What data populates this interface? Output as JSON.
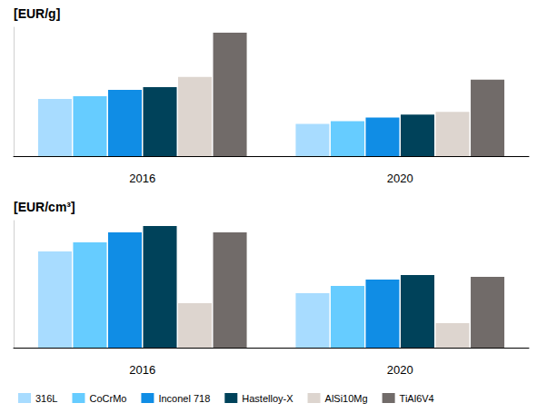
{
  "chart_data": [
    {
      "type": "bar",
      "ylabel": "[EUR/g]",
      "categories": [
        "2016",
        "2020"
      ],
      "series": [
        {
          "name": "316L",
          "color": "#a8dcff",
          "values": [
            62,
            35
          ]
        },
        {
          "name": "CoCrMo",
          "color": "#66ccff",
          "values": [
            65,
            38
          ]
        },
        {
          "name": "Inconel 718",
          "color": "#108de5",
          "values": [
            72,
            42
          ]
        },
        {
          "name": "Hastelloy-X",
          "color": "#00425a",
          "values": [
            75,
            45
          ]
        },
        {
          "name": "AlSi10Mg",
          "color": "#ddd5cf",
          "values": [
            86,
            48
          ]
        },
        {
          "name": "TiAl6V4",
          "color": "#716b69",
          "values": [
            134,
            83
          ]
        }
      ],
      "ylim": [
        0,
        140
      ],
      "grid": false,
      "tick_labels": "x"
    },
    {
      "type": "bar",
      "ylabel": "[EUR/cm³]",
      "categories": [
        "2016",
        "2020"
      ],
      "series": [
        {
          "name": "316L",
          "color": "#a8dcff",
          "values": [
            106,
            60
          ]
        },
        {
          "name": "CoCrMo",
          "color": "#66ccff",
          "values": [
            116,
            68
          ]
        },
        {
          "name": "Inconel 718",
          "color": "#108de5",
          "values": [
            127,
            75
          ]
        },
        {
          "name": "Hastelloy-X",
          "color": "#00425a",
          "values": [
            134,
            80
          ]
        },
        {
          "name": "AlSi10Mg",
          "color": "#ddd5cf",
          "values": [
            49,
            27
          ]
        },
        {
          "name": "TiAl6V4",
          "color": "#716b69",
          "values": [
            127,
            78
          ]
        }
      ],
      "ylim": [
        0,
        140
      ],
      "grid": false,
      "tick_labels": "x",
      "legend": "bottom-left"
    }
  ]
}
